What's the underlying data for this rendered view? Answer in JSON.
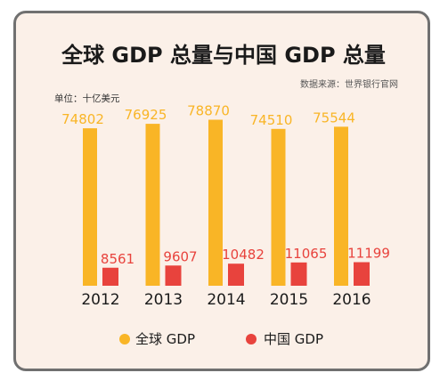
{
  "chart_data": {
    "type": "bar",
    "title": "全球 GDP 总量与中国 GDP 总量",
    "source": "数据来源：世界银行官网",
    "unit_label": "单位：十亿美元",
    "categories": [
      "2012",
      "2013",
      "2014",
      "2015",
      "2016"
    ],
    "series": [
      {
        "name": "全球 GDP",
        "color": "#f9b526",
        "values": [
          74802,
          76925,
          78870,
          74510,
          75544
        ]
      },
      {
        "name": "中国 GDP",
        "color": "#e8433d",
        "values": [
          8561,
          9607,
          10482,
          11065,
          11199
        ]
      }
    ],
    "ylim": [
      0,
      85000
    ],
    "legend_position": "bottom",
    "grid": false
  }
}
